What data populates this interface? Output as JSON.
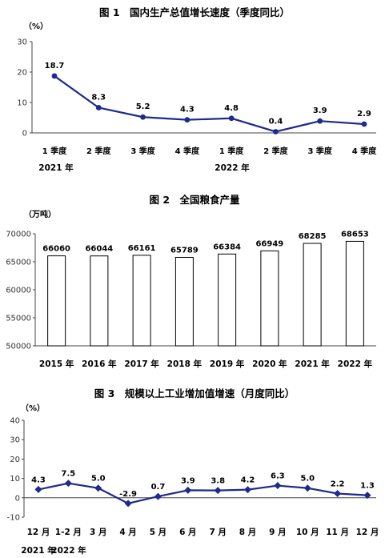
{
  "chart_data": [
    {
      "type": "line",
      "title": "图 1　国内生产总值增长速度（季度同比）",
      "unit": "（%）",
      "ylim": [
        0,
        30
      ],
      "yticks": [
        "0",
        "10",
        "20",
        "30"
      ],
      "categories": [
        "1 季度",
        "2 季度",
        "3 季度",
        "4 季度",
        "1 季度",
        "2 季度",
        "3 季度",
        "4 季度"
      ],
      "values": [
        18.7,
        8.3,
        5.2,
        4.3,
        4.8,
        0.4,
        3.9,
        2.9
      ],
      "data_labels": [
        "18.7",
        "8.3",
        "5.2",
        "4.3",
        "4.8",
        "0.4",
        "3.9",
        "2.9"
      ],
      "year_labels": [
        "2021 年",
        "2022 年"
      ],
      "color": "#1f2a8c"
    },
    {
      "type": "bar",
      "title": "图 2　全国粮食产量",
      "unit": "（万吨）",
      "ylim": [
        50000,
        70000
      ],
      "yticks": [
        "50000",
        "55000",
        "60000",
        "65000",
        "70000"
      ],
      "categories": [
        "2015 年",
        "2016 年",
        "2017 年",
        "2018 年",
        "2019 年",
        "2020 年",
        "2021 年",
        "2022 年"
      ],
      "values": [
        66060,
        66044,
        66161,
        65789,
        66384,
        66949,
        68285,
        68653
      ],
      "data_labels": [
        "66060",
        "66044",
        "66161",
        "65789",
        "66384",
        "66949",
        "68285",
        "68653"
      ],
      "color": "#ffffff"
    },
    {
      "type": "line",
      "title": "图 3　规模以上工业增加值增速（月度同比）",
      "unit": "（%）",
      "ylim": [
        -10,
        40
      ],
      "yticks": [
        "-10",
        "0",
        "10",
        "20",
        "30",
        "40"
      ],
      "categories": [
        "12 月",
        "1-2 月",
        "3 月",
        "4 月",
        "5 月",
        "6 月",
        "7 月",
        "8 月",
        "9 月",
        "10 月",
        "11 月",
        "12 月"
      ],
      "values": [
        4.3,
        7.5,
        5.0,
        -2.9,
        0.7,
        3.9,
        3.8,
        4.2,
        6.3,
        5.0,
        2.2,
        1.3
      ],
      "data_labels": [
        "4.3",
        "7.5",
        "5.0",
        "-2.9",
        "0.7",
        "3.9",
        "3.8",
        "4.2",
        "6.3",
        "5.0",
        "2.2",
        "1.3"
      ],
      "year_labels": [
        "2021 年",
        "2022 年"
      ],
      "color": "#1f2a8c"
    }
  ]
}
